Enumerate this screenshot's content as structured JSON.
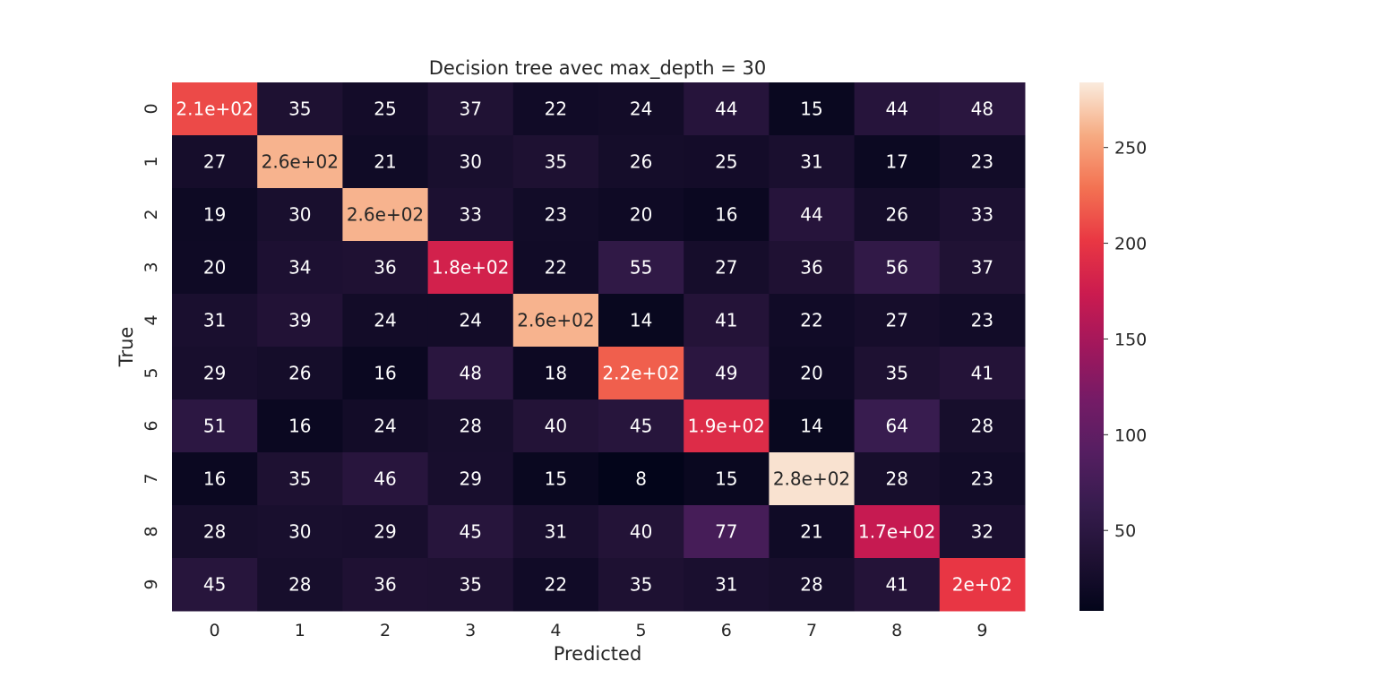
{
  "chart_data": {
    "type": "heatmap",
    "title": "Decision tree avec max_depth = 30",
    "xlabel": "Predicted",
    "ylabel": "True",
    "x_categories": [
      "0",
      "1",
      "2",
      "3",
      "4",
      "5",
      "6",
      "7",
      "8",
      "9"
    ],
    "y_categories": [
      "0",
      "1",
      "2",
      "3",
      "4",
      "5",
      "6",
      "7",
      "8",
      "9"
    ],
    "values": [
      [
        210,
        35,
        25,
        37,
        22,
        24,
        44,
        15,
        44,
        48
      ],
      [
        27,
        260,
        21,
        30,
        35,
        26,
        25,
        31,
        17,
        23
      ],
      [
        19,
        30,
        260,
        33,
        23,
        20,
        16,
        44,
        26,
        33
      ],
      [
        20,
        34,
        36,
        180,
        22,
        55,
        27,
        36,
        56,
        37
      ],
      [
        31,
        39,
        24,
        24,
        260,
        14,
        41,
        22,
        27,
        23
      ],
      [
        29,
        26,
        16,
        48,
        18,
        220,
        49,
        20,
        35,
        41
      ],
      [
        51,
        16,
        24,
        28,
        40,
        45,
        190,
        14,
        64,
        28
      ],
      [
        16,
        35,
        46,
        29,
        15,
        8,
        15,
        280,
        28,
        23
      ],
      [
        28,
        30,
        29,
        45,
        31,
        40,
        77,
        21,
        170,
        32
      ],
      [
        45,
        28,
        36,
        35,
        22,
        35,
        31,
        28,
        41,
        200
      ]
    ],
    "cell_labels": [
      [
        "2.1e+02",
        "35",
        "25",
        "37",
        "22",
        "24",
        "44",
        "15",
        "44",
        "48"
      ],
      [
        "27",
        "2.6e+02",
        "21",
        "30",
        "35",
        "26",
        "25",
        "31",
        "17",
        "23"
      ],
      [
        "19",
        "30",
        "2.6e+02",
        "33",
        "23",
        "20",
        "16",
        "44",
        "26",
        "33"
      ],
      [
        "20",
        "34",
        "36",
        "1.8e+02",
        "22",
        "55",
        "27",
        "36",
        "56",
        "37"
      ],
      [
        "31",
        "39",
        "24",
        "24",
        "2.6e+02",
        "14",
        "41",
        "22",
        "27",
        "23"
      ],
      [
        "29",
        "26",
        "16",
        "48",
        "18",
        "2.2e+02",
        "49",
        "20",
        "35",
        "41"
      ],
      [
        "51",
        "16",
        "24",
        "28",
        "40",
        "45",
        "1.9e+02",
        "14",
        "64",
        "28"
      ],
      [
        "16",
        "35",
        "46",
        "29",
        "15",
        "8",
        "15",
        "2.8e+02",
        "28",
        "23"
      ],
      [
        "28",
        "30",
        "29",
        "45",
        "31",
        "40",
        "77",
        "21",
        "1.7e+02",
        "32"
      ],
      [
        "45",
        "28",
        "36",
        "35",
        "22",
        "35",
        "31",
        "28",
        "41",
        "2e+02"
      ]
    ],
    "colormap": "rocket",
    "colorbar": {
      "vmin": 8,
      "vmax": 284,
      "ticks": [
        50,
        100,
        150,
        200,
        250
      ],
      "tick_labels": [
        "50",
        "100",
        "150",
        "200",
        "250"
      ]
    },
    "grid": false,
    "legend": "colorbar-right"
  }
}
